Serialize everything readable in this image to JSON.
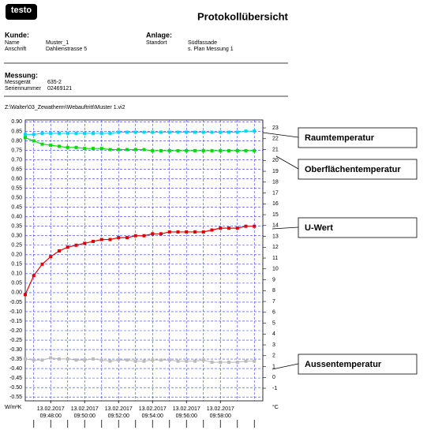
{
  "header": {
    "logo": "testo",
    "title": "Protokollübersicht"
  },
  "kunde": {
    "heading": "Kunde:",
    "name_label": "Name",
    "name": "Muster_1",
    "address_label": "Anschrift",
    "address": "Dahlienstrasse 5"
  },
  "anlage": {
    "heading": "Anlage:",
    "location_label": "Standort",
    "location": "Südfassade",
    "note": "s. Plan Messung 1"
  },
  "messung": {
    "heading": "Messung:",
    "device_label": "Messgerät",
    "device": "635-2",
    "serial_label": "Seriennummer",
    "serial": "02469121"
  },
  "file_path": "Z:\\Walter\\03_Zewatherm\\Webauftritt\\Muster 1.vi2",
  "chart_data": {
    "type": "line",
    "ylabel": "W/m²K",
    "y2label": "°C",
    "grid": true,
    "ylim": [
      -0.57,
      0.91
    ],
    "yticks": [
      {
        "value": 0.9,
        "label": "0.90"
      },
      0.85,
      {
        "value": 0.8,
        "label": "0.80"
      },
      0.75,
      {
        "value": 0.7,
        "label": "0.70"
      },
      0.65,
      {
        "value": 0.6,
        "label": "0.60"
      },
      0.55,
      {
        "value": 0.5,
        "label": "0.50"
      },
      0.45,
      {
        "value": 0.4,
        "label": "0.40"
      },
      0.35,
      {
        "value": 0.3,
        "label": "0.30"
      },
      0.25,
      {
        "value": 0.2,
        "label": "0.20"
      },
      0.15,
      {
        "value": 0.1,
        "label": "0.10"
      },
      0.05,
      {
        "value": 0,
        "label": "0.00"
      },
      -0.05,
      {
        "value": -0.1,
        "label": "-0.10"
      },
      -0.15,
      {
        "value": -0.2,
        "label": "-0.20"
      },
      -0.25,
      {
        "value": -0.3,
        "label": "-0.30"
      },
      -0.35,
      {
        "value": -0.4,
        "label": "-0.40"
      },
      -0.45,
      {
        "value": -0.5,
        "label": "-0.50"
      },
      -0.55
    ],
    "y2lim": [
      -2.16,
      23.73
    ],
    "y2ticks": [
      -1,
      0,
      1,
      2,
      3,
      4,
      5,
      6,
      7,
      8,
      9,
      10,
      11,
      12,
      13,
      14,
      15,
      16,
      17,
      18,
      19,
      20,
      21,
      22,
      23
    ],
    "xlim": [
      "09:46:30",
      "10:00:30"
    ],
    "xticks": [
      {
        "date": "13.02.2017",
        "time": "09:48:00"
      },
      {
        "date": "13.02.2017",
        "time": "09:50:00"
      },
      {
        "date": "13.02.2017",
        "time": "09:52:00"
      },
      {
        "date": "13.02.2017",
        "time": "09:54:00"
      },
      {
        "date": "13.02.2017",
        "time": "09:56:00"
      },
      {
        "date": "13.02.2017",
        "time": "09:58:00"
      }
    ],
    "x": [
      "09:46:30",
      "09:47:00",
      "09:47:30",
      "09:48:00",
      "09:48:30",
      "09:49:00",
      "09:49:30",
      "09:50:00",
      "09:50:30",
      "09:51:00",
      "09:51:30",
      "09:52:00",
      "09:52:30",
      "09:53:00",
      "09:53:30",
      "09:54:00",
      "09:54:30",
      "09:55:00",
      "09:55:30",
      "09:56:00",
      "09:56:30",
      "09:57:00",
      "09:57:30",
      "09:58:00",
      "09:58:30",
      "09:59:00",
      "09:59:30",
      "10:00:00"
    ],
    "series": [
      {
        "name": "Raumtemperatur",
        "color": "#00d8f0",
        "axis": "y2",
        "values": [
          22.4,
          22.4,
          22.5,
          22.5,
          22.5,
          22.5,
          22.5,
          22.5,
          22.5,
          22.5,
          22.5,
          22.6,
          22.6,
          22.6,
          22.6,
          22.6,
          22.6,
          22.6,
          22.6,
          22.6,
          22.6,
          22.6,
          22.6,
          22.6,
          22.6,
          22.6,
          22.7,
          22.7
        ]
      },
      {
        "name": "Oberflächentemperatur",
        "color": "#00dd00",
        "axis": "y2",
        "values": [
          22.1,
          21.8,
          21.5,
          21.4,
          21.3,
          21.2,
          21.2,
          21.1,
          21.1,
          21.1,
          21.0,
          21.0,
          21.0,
          21.0,
          21.0,
          20.9,
          20.9,
          20.9,
          20.9,
          20.9,
          20.9,
          20.9,
          20.9,
          20.9,
          20.9,
          20.9,
          20.9,
          20.9
        ]
      },
      {
        "name": "U-Wert",
        "color": "#e00000",
        "values": [
          -0.01,
          0.09,
          0.15,
          0.19,
          0.22,
          0.24,
          0.25,
          0.26,
          0.27,
          0.28,
          0.28,
          0.29,
          0.29,
          0.3,
          0.3,
          0.31,
          0.31,
          0.32,
          0.32,
          0.32,
          0.32,
          0.32,
          0.33,
          0.34,
          0.34,
          0.34,
          0.35,
          0.35
        ]
      },
      {
        "name": "Aussentemperatur",
        "color": "#bbbbbb",
        "axis": "y2",
        "values": [
          1.7,
          1.6,
          1.6,
          1.8,
          1.7,
          1.7,
          1.6,
          1.6,
          1.7,
          1.6,
          1.5,
          1.6,
          1.6,
          1.5,
          1.5,
          1.6,
          1.6,
          1.6,
          1.5,
          1.5,
          1.5,
          1.6,
          1.4,
          1.4,
          1.4,
          1.4,
          1.5,
          1.5
        ]
      }
    ]
  }
}
